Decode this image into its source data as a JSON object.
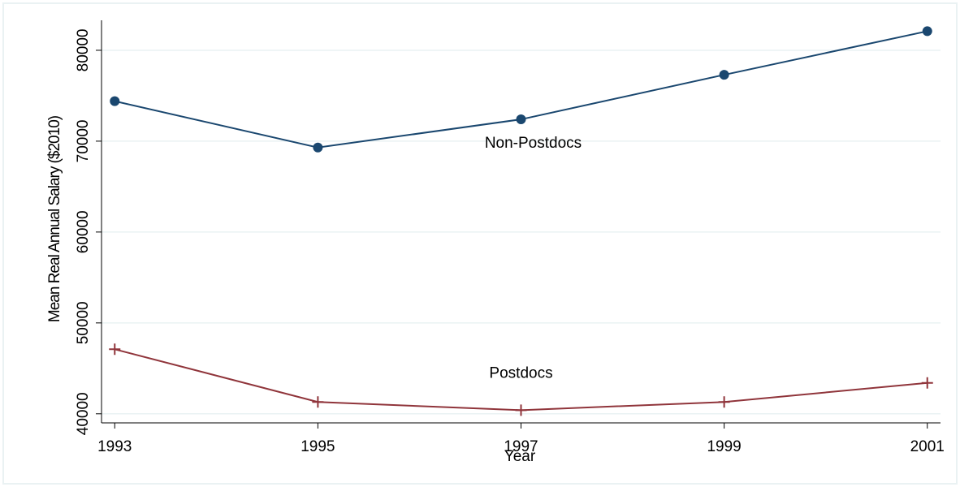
{
  "chart_data": {
    "type": "line",
    "xlabel": "Year",
    "ylabel": "Mean Real Annual Salary ($2010)",
    "x": [
      1993,
      1995,
      1997,
      1999,
      2001
    ],
    "series": [
      {
        "name": "Non-Postdocs",
        "color": "#1a476f",
        "marker": "circle",
        "values": [
          74400,
          69300,
          72400,
          77300,
          82100
        ]
      },
      {
        "name": "Postdocs",
        "color": "#90353b",
        "marker": "plus",
        "values": [
          47100,
          41300,
          40400,
          41300,
          43400
        ]
      }
    ],
    "xlim": [
      1992.87,
      2001.13
    ],
    "xticks": [
      1993,
      1995,
      1997,
      1999,
      2001
    ],
    "ylim": [
      39000,
      83300
    ],
    "yticks": [
      40000,
      50000,
      60000,
      70000,
      80000
    ],
    "grid": true
  }
}
